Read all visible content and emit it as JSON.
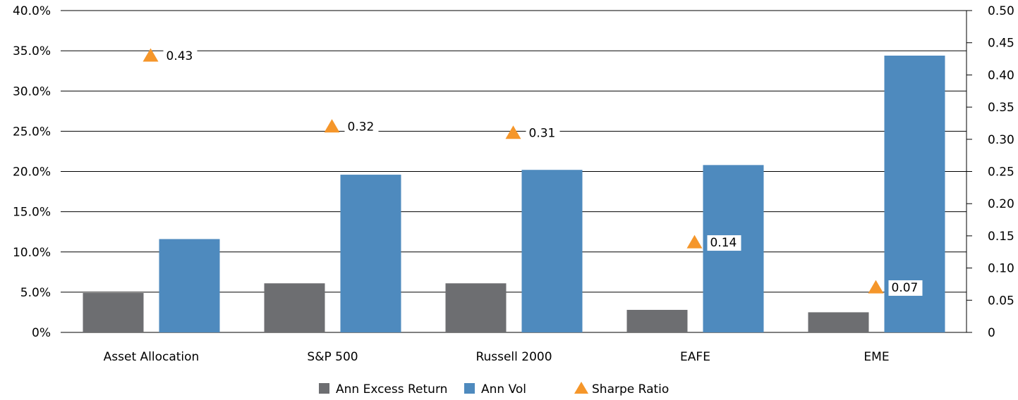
{
  "chart_data": {
    "type": "bar",
    "categories": [
      "Asset Allocation",
      "S&P 500",
      "Russell 2000",
      "EAFE",
      "EME"
    ],
    "series": [
      {
        "name": "Ann Excess Return",
        "type": "bar",
        "axis": "left",
        "color": "#6d6e71",
        "values": [
          4.9,
          6.1,
          6.1,
          2.8,
          2.5
        ]
      },
      {
        "name": "Ann Vol",
        "type": "bar",
        "axis": "left",
        "color": "#4e8abe",
        "values": [
          11.6,
          19.6,
          20.2,
          20.8,
          34.4
        ]
      },
      {
        "name": "Sharpe Ratio",
        "type": "scatter",
        "marker": "triangle",
        "axis": "right",
        "color": "#f5962a",
        "values": [
          0.43,
          0.32,
          0.31,
          0.14,
          0.07
        ],
        "labels": [
          "0.43",
          "0.32",
          "0.31",
          "0.14",
          "0.07"
        ]
      }
    ],
    "y_left": {
      "ylim": [
        0,
        40
      ],
      "ticks": [
        0,
        5,
        10,
        15,
        20,
        25,
        30,
        35,
        40
      ],
      "tick_labels": [
        "0%",
        "5.0%",
        "10.0%",
        "15.0%",
        "20.0%",
        "25.0%",
        "30.0%",
        "35.0%",
        "40.0%"
      ]
    },
    "y_right": {
      "ylim": [
        0,
        0.5
      ],
      "ticks": [
        0,
        0.05,
        0.1,
        0.15,
        0.2,
        0.25,
        0.3,
        0.35,
        0.4,
        0.45,
        0.5
      ],
      "tick_labels": [
        "0",
        "0.05",
        "0.10",
        "0.15",
        "0.20",
        "0.25",
        "0.30",
        "0.35",
        "0.40",
        "0.45",
        "0.50"
      ]
    },
    "grid": true,
    "legend_position": "bottom-center"
  }
}
